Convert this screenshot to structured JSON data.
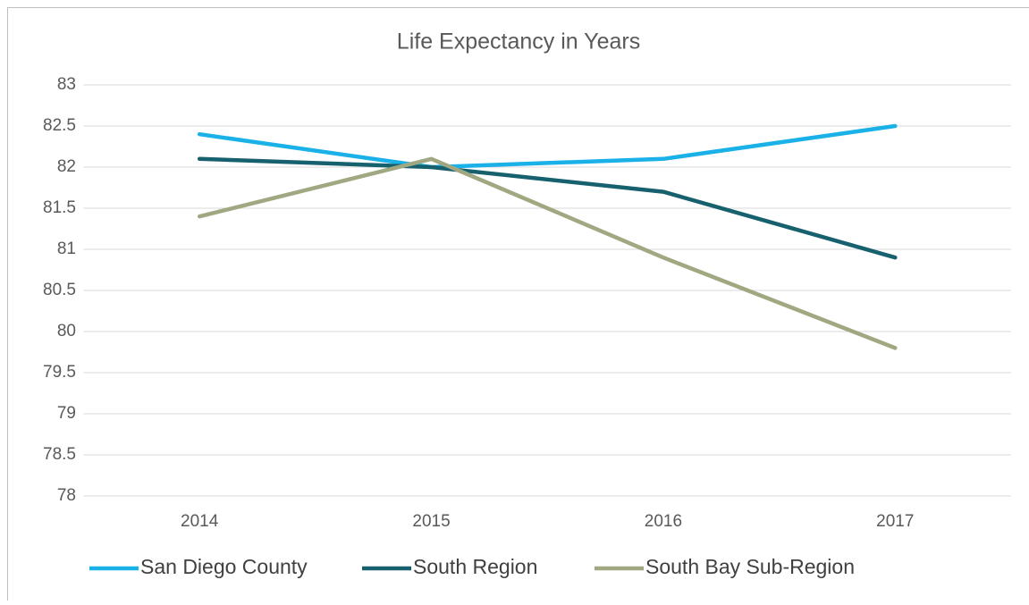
{
  "chart_data": {
    "type": "line",
    "title": "Life Expectancy in Years",
    "categories": [
      "2014",
      "2015",
      "2016",
      "2017"
    ],
    "series": [
      {
        "name": "San Diego County",
        "color": "#1ab0e8",
        "values": [
          82.4,
          82.0,
          82.1,
          82.5
        ]
      },
      {
        "name": "South Region",
        "color": "#17606e",
        "values": [
          82.1,
          82.0,
          81.7,
          80.9
        ]
      },
      {
        "name": "South Bay Sub-Region",
        "color": "#a0a882",
        "values": [
          81.4,
          82.1,
          80.9,
          79.8
        ]
      }
    ],
    "ylim": [
      78,
      83
    ],
    "yticks": [
      78,
      78.5,
      79,
      79.5,
      80,
      80.5,
      81,
      81.5,
      82,
      82.5,
      83
    ],
    "grid": true,
    "legend": "bottom"
  }
}
